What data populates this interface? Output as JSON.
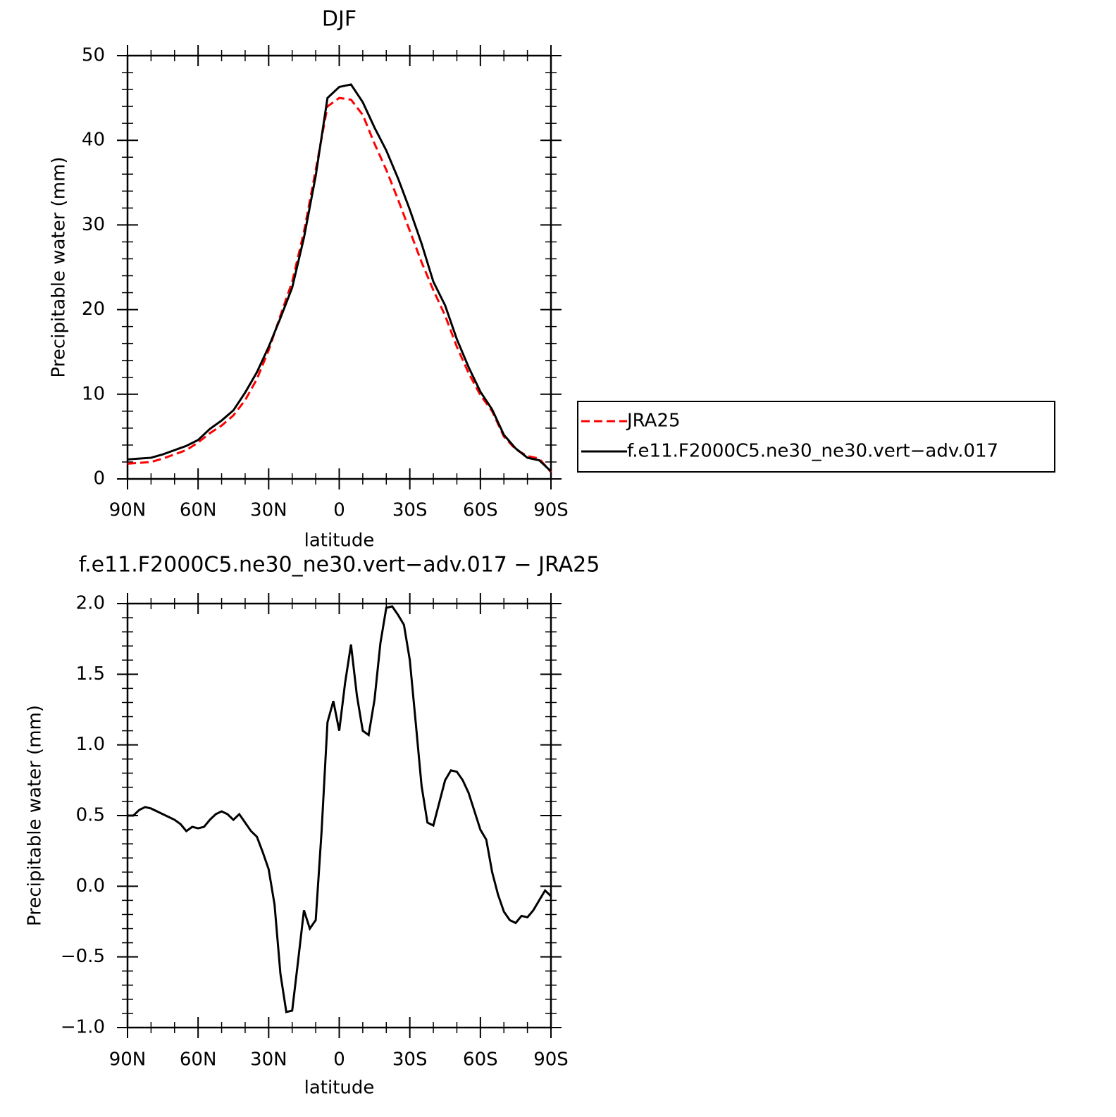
{
  "chart_data": [
    {
      "type": "line",
      "title": "DJF",
      "xlabel": "latitude",
      "ylabel": "Precipitable water (mm)",
      "x": [
        90,
        85,
        80,
        75,
        70,
        65,
        60,
        55,
        50,
        45,
        40,
        35,
        30,
        25,
        20,
        15,
        10,
        5,
        0,
        -5,
        -10,
        -15,
        -20,
        -25,
        -30,
        -35,
        -40,
        -45,
        -50,
        -55,
        -60,
        -65,
        -70,
        -75,
        -80,
        -85,
        -90
      ],
      "xlim": [
        90,
        -90
      ],
      "xticks": [
        {
          "value": 90,
          "label": "90N"
        },
        {
          "value": 60,
          "label": "60N"
        },
        {
          "value": 30,
          "label": "30N"
        },
        0,
        {
          "value": -30,
          "label": "30S"
        },
        {
          "value": -60,
          "label": "60S"
        },
        {
          "value": -90,
          "label": "90S"
        }
      ],
      "ylim": [
        0,
        50
      ],
      "yticks": [
        0,
        10,
        20,
        30,
        40,
        50
      ],
      "legend": "right",
      "series": [
        {
          "name": "JRA25",
          "color": "#ff0000",
          "linestyle": "dashed",
          "values": [
            1.8,
            1.9,
            2.0,
            2.4,
            2.9,
            3.4,
            4.3,
            5.4,
            6.3,
            7.5,
            9.3,
            11.8,
            15.2,
            19.3,
            23.3,
            29.2,
            36.5,
            44.0,
            45.0,
            44.8,
            43.0,
            39.6,
            36.5,
            33.0,
            29.3,
            25.6,
            22.3,
            19.3,
            15.6,
            12.5,
            9.9,
            8.0,
            5.0,
            3.5,
            2.7,
            2.4,
            0.8
          ]
        },
        {
          "name": "f.e11.F2000C5.ne30_ne30.vert−adv.017",
          "color": "#000000",
          "linestyle": "solid",
          "values": [
            2.3,
            2.4,
            2.5,
            2.9,
            3.4,
            3.9,
            4.6,
            5.9,
            6.9,
            8.1,
            10.2,
            12.6,
            15.6,
            19.0,
            22.6,
            28.5,
            35.8,
            45.0,
            46.3,
            46.6,
            44.5,
            41.5,
            38.8,
            35.5,
            31.8,
            27.8,
            23.3,
            20.5,
            16.5,
            13.2,
            10.3,
            8.2,
            5.2,
            3.6,
            2.5,
            2.2,
            0.9
          ]
        }
      ]
    },
    {
      "type": "line",
      "title": "f.e11.F2000C5.ne30_ne30.vert−adv.017 − JRA25",
      "xlabel": "latitude",
      "ylabel": "Precipitable water (mm)",
      "x": [
        90,
        87.5,
        85,
        82.5,
        80,
        77.5,
        75,
        72.5,
        70,
        67.5,
        65,
        62.5,
        60,
        57.5,
        55,
        52.5,
        50,
        47.5,
        45,
        42.5,
        40,
        37.5,
        35,
        32.5,
        30,
        27.5,
        25,
        22.5,
        20,
        17.5,
        15,
        12.5,
        10,
        7.5,
        5,
        2.5,
        0,
        -2.5,
        -5,
        -7.5,
        -10,
        -12.5,
        -15,
        -17.5,
        -20,
        -22.5,
        -25,
        -27.5,
        -30,
        -32.5,
        -35,
        -37.5,
        -40,
        -42.5,
        -45,
        -47.5,
        -50,
        -52.5,
        -55,
        -57.5,
        -60,
        -62.5,
        -65,
        -67.5,
        -70,
        -72.5,
        -75,
        -77.5,
        -80,
        -82.5,
        -85,
        -87.5,
        -90
      ],
      "xlim": [
        90,
        -90
      ],
      "xticks": [
        {
          "value": 90,
          "label": "90N"
        },
        {
          "value": 60,
          "label": "60N"
        },
        {
          "value": 30,
          "label": "30N"
        },
        0,
        {
          "value": -30,
          "label": "30S"
        },
        {
          "value": -60,
          "label": "60S"
        },
        {
          "value": -90,
          "label": "90S"
        }
      ],
      "ylim": [
        -1,
        2
      ],
      "yticks": [
        {
          "value": -1,
          "label": "−1.0"
        },
        {
          "value": -0.5,
          "label": "−0.5"
        },
        {
          "value": 0,
          "label": "0.0"
        },
        0.5,
        {
          "value": 1,
          "label": "1.0"
        },
        1.5,
        {
          "value": 2,
          "label": "2.0"
        }
      ],
      "color": "#000000",
      "values": [
        0.5,
        0.5,
        0.54,
        0.56,
        0.55,
        0.53,
        0.51,
        0.49,
        0.47,
        0.44,
        0.39,
        0.42,
        0.41,
        0.42,
        0.47,
        0.51,
        0.53,
        0.51,
        0.47,
        0.51,
        0.45,
        0.39,
        0.35,
        0.24,
        0.12,
        -0.13,
        -0.62,
        -0.89,
        -0.88,
        -0.53,
        -0.17,
        -0.3,
        -0.24,
        0.39,
        1.16,
        1.31,
        1.1,
        1.44,
        1.71,
        1.35,
        1.1,
        1.07,
        1.32,
        1.72,
        1.97,
        1.98,
        1.92,
        1.85,
        1.6,
        1.16,
        0.71,
        0.45,
        0.43,
        0.59,
        0.75,
        0.82,
        0.81,
        0.75,
        0.66,
        0.53,
        0.4,
        0.33,
        0.1,
        -0.06,
        -0.18,
        -0.24,
        -0.26,
        -0.21,
        -0.22,
        -0.17,
        -0.1,
        -0.03,
        -0.07
      ]
    }
  ]
}
